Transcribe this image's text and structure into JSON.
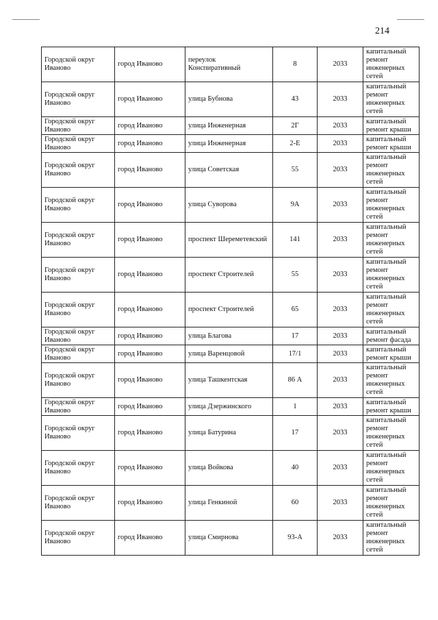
{
  "page_number": "214",
  "rows": [
    {
      "district": "Городской округ Иваново",
      "city": "город Иваново",
      "street": "переулок Конспиративный",
      "house": "8",
      "year": "2033",
      "work": "капитальный ремонт инженерных сетей"
    },
    {
      "district": "Городской округ Иваново",
      "city": "город Иваново",
      "street": "улица Бубнова",
      "house": "43",
      "year": "2033",
      "work": "капитальный ремонт инженерных сетей"
    },
    {
      "district": "Городской округ Иваново",
      "city": "город Иваново",
      "street": "улица Инженерная",
      "house": "2Г",
      "year": "2033",
      "work": "капитальный ремонт крыши"
    },
    {
      "district": "Городской округ Иваново",
      "city": "город Иваново",
      "street": "улица Инженерная",
      "house": "2-Е",
      "year": "2033",
      "work": "капитальный ремонт крыши"
    },
    {
      "district": "Городской округ Иваново",
      "city": "город Иваново",
      "street": "улица Советская",
      "house": "55",
      "year": "2033",
      "work": "капитальный ремонт инженерных сетей"
    },
    {
      "district": "Городской округ Иваново",
      "city": "город Иваново",
      "street": "улица Суворова",
      "house": "9А",
      "year": "2033",
      "work": "капитальный ремонт инженерных сетей"
    },
    {
      "district": "Городской округ Иваново",
      "city": "город Иваново",
      "street": "проспект Шереметевский",
      "house": "141",
      "year": "2033",
      "work": "капитальный ремонт инженерных сетей"
    },
    {
      "district": "Городской округ Иваново",
      "city": "город Иваново",
      "street": "проспект Строителей",
      "house": "55",
      "year": "2033",
      "work": "капитальный ремонт инженерных сетей"
    },
    {
      "district": "Городской округ Иваново",
      "city": "город Иваново",
      "street": "проспект Строителей",
      "house": "65",
      "year": "2033",
      "work": "капитальный ремонт инженерных сетей"
    },
    {
      "district": "Городской округ Иваново",
      "city": "город Иваново",
      "street": "улица Благова",
      "house": "17",
      "year": "2033",
      "work": "капитальный ремонт фасада"
    },
    {
      "district": "Городской округ Иваново",
      "city": "город Иваново",
      "street": "улица Варенцовой",
      "house": "17/1",
      "year": "2033",
      "work": "капитальный ремонт крыши"
    },
    {
      "district": "Городской округ Иваново",
      "city": "город Иваново",
      "street": "улица Ташкентская",
      "house": "86 А",
      "year": "2033",
      "work": "капитальный ремонт инженерных сетей"
    },
    {
      "district": "Городской округ Иваново",
      "city": "город Иваново",
      "street": "улица Дзержинского",
      "house": "1",
      "year": "2033",
      "work": "капитальный ремонт крыши"
    },
    {
      "district": "Городской округ Иваново",
      "city": "город Иваново",
      "street": "улица Батурина",
      "house": "17",
      "year": "2033",
      "work": "капитальный ремонт инженерных сетей"
    },
    {
      "district": "Городской округ Иваново",
      "city": "город Иваново",
      "street": "улица Войкова",
      "house": "40",
      "year": "2033",
      "work": "капитальный ремонт инженерных сетей"
    },
    {
      "district": "Городской округ Иваново",
      "city": "город Иваново",
      "street": "улица Генкиной",
      "house": "60",
      "year": "2033",
      "work": "капитальный ремонт инженерных сетей"
    },
    {
      "district": "Городской округ Иваново",
      "city": "город Иваново",
      "street": "улица Смирнова",
      "house": "93-А",
      "year": "2033",
      "work": "капитальный ремонт инженерных сетей"
    }
  ]
}
